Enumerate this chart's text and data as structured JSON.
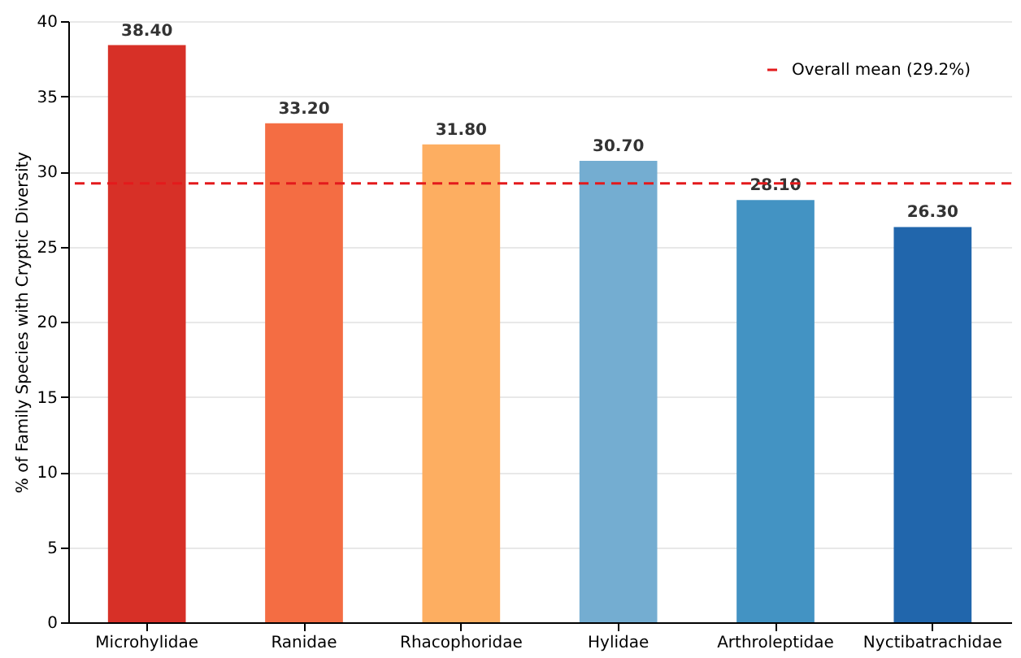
{
  "chart_data": {
    "type": "bar",
    "ylabel": "% of Family Species with Cryptic Diversity",
    "categories": [
      "Microhylidae",
      "Ranidae",
      "Rhacophoridae",
      "Hylidae",
      "Arthroleptidae",
      "Nyctibatrachidae"
    ],
    "values": [
      38.4,
      33.2,
      31.8,
      30.7,
      28.1,
      26.3
    ],
    "value_labels": [
      "38.40",
      "33.20",
      "31.80",
      "30.70",
      "28.10",
      "26.30"
    ],
    "colors": [
      "#d73027",
      "#f46d43",
      "#fdae61",
      "#74add1",
      "#4393c3",
      "#2166ac"
    ],
    "ylim": [
      0,
      40
    ],
    "yticks": [
      0,
      5,
      10,
      15,
      20,
      25,
      30,
      35,
      40
    ],
    "grid": "y",
    "ref_lines": [
      {
        "axis": "y",
        "value": 29.2,
        "label": "Overall mean (29.2%)",
        "color": "#e31a1c",
        "line_style": "dashed"
      }
    ],
    "legend": "top right"
  }
}
